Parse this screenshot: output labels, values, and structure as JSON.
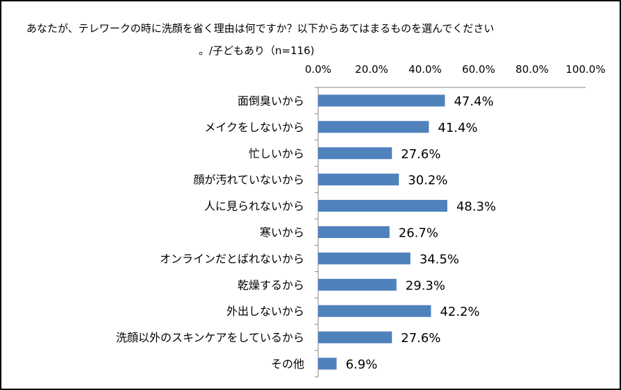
{
  "title": "あなたが、テレワークの時に洗顔を省く理由は何ですか？以下からあてはまるものを選んでください",
  "subtitle": "。/子どもあり（n=116)",
  "chart_data": {
    "type": "bar",
    "orientation": "horizontal",
    "categories": [
      "面倒臭いから",
      "メイクをしないから",
      "忙しいから",
      "顔が汚れていないから",
      "人に見られないから",
      "寒いから",
      "オンラインだとばれないから",
      "乾燥するから",
      "外出しないから",
      "洗顔以外のスキンケアをしているから",
      "その他"
    ],
    "values": [
      47.4,
      41.4,
      27.6,
      30.2,
      48.3,
      26.7,
      34.5,
      29.3,
      42.2,
      27.6,
      6.9
    ],
    "value_labels": [
      "47.4%",
      "41.4%",
      "27.6%",
      "30.2%",
      "48.3%",
      "26.7%",
      "34.5%",
      "29.3%",
      "42.2%",
      "27.6%",
      "6.9%"
    ],
    "xlim": [
      0,
      100
    ],
    "x_ticks": [
      "0.0%",
      "20.0%",
      "40.0%",
      "60.0%",
      "80.0%",
      "100.0%"
    ],
    "x_axis_position": "top",
    "grid": false,
    "legend": "none",
    "bar_color": "#4f81bd"
  }
}
